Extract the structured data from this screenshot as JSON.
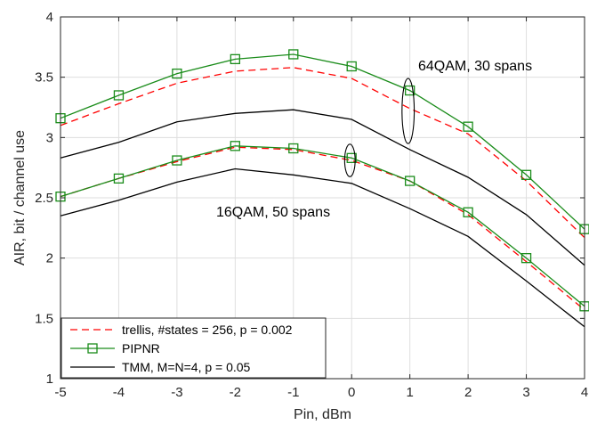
{
  "chart_data": {
    "type": "line",
    "xlabel": "Pin, dBm",
    "ylabel": "AIR, bit / channel use",
    "xlim": [
      -5,
      4
    ],
    "ylim": [
      1,
      4
    ],
    "xticks": [
      -5,
      -4,
      -3,
      -2,
      -1,
      0,
      1,
      2,
      3,
      4
    ],
    "xtick_labels": [
      "-5",
      "-4",
      "-3",
      "-2",
      "-1",
      "0",
      "1",
      "2",
      "3",
      "4"
    ],
    "yticks": [
      1,
      1.5,
      2,
      2.5,
      3,
      3.5,
      4
    ],
    "ytick_labels": [
      "1",
      "1.5",
      "2",
      "2.5",
      "3",
      "3.5",
      "4"
    ],
    "grid": true,
    "legend_position": "bottom-left",
    "x": [
      -5,
      -4,
      -3,
      -2,
      -1,
      0,
      1,
      2,
      3,
      4
    ],
    "series": [
      {
        "name": "trellis, #states = 256, p = 0.002",
        "group": "64QAM",
        "color": "#ff0000",
        "style": "dashed",
        "marker": "none",
        "values": [
          3.1,
          3.28,
          3.45,
          3.55,
          3.58,
          3.49,
          3.24,
          3.03,
          2.64,
          2.17
        ]
      },
      {
        "name": "PIPNR",
        "group": "64QAM",
        "color": "#1a8c1a",
        "style": "solid",
        "marker": "square",
        "values": [
          3.16,
          3.35,
          3.53,
          3.65,
          3.69,
          3.59,
          3.39,
          3.09,
          2.69,
          2.24
        ]
      },
      {
        "name": "TMM, M=N=4, p = 0.05",
        "group": "64QAM",
        "color": "#000000",
        "style": "solid",
        "marker": "none",
        "values": [
          2.83,
          2.96,
          3.13,
          3.2,
          3.23,
          3.15,
          2.9,
          2.67,
          2.36,
          1.94
        ]
      },
      {
        "name": "trellis, #states = 256, p = 0.002",
        "group": "16QAM",
        "color": "#ff0000",
        "style": "dashed",
        "marker": "none",
        "values": [
          2.51,
          2.66,
          2.8,
          2.92,
          2.9,
          2.81,
          2.64,
          2.36,
          1.97,
          1.57
        ]
      },
      {
        "name": "PIPNR",
        "group": "16QAM",
        "color": "#1a8c1a",
        "style": "solid",
        "marker": "square",
        "values": [
          2.51,
          2.66,
          2.81,
          2.93,
          2.91,
          2.83,
          2.64,
          2.38,
          2.0,
          1.6
        ]
      },
      {
        "name": "TMM, M=N=4, p = 0.05",
        "group": "16QAM",
        "color": "#000000",
        "style": "solid",
        "marker": "none",
        "values": [
          2.35,
          2.48,
          2.63,
          2.74,
          2.69,
          2.62,
          2.41,
          2.18,
          1.81,
          1.43
        ]
      }
    ],
    "annotations": [
      {
        "text": "64QAM, 30 spans",
        "ellipse_center": [
          0.97,
          3.22
        ],
        "ellipse_span": [
          0.21,
          0.54
        ]
      },
      {
        "text": "16QAM, 50 spans",
        "ellipse_center": [
          -0.03,
          2.81
        ],
        "ellipse_span": [
          0.18,
          0.27
        ]
      }
    ],
    "legend": [
      {
        "label": "trellis, #states = 256, p = 0.002",
        "color": "#ff0000",
        "style": "dashed",
        "marker": "none"
      },
      {
        "label": "PIPNR",
        "color": "#1a8c1a",
        "style": "solid",
        "marker": "square"
      },
      {
        "label": "TMM, M=N=4, p = 0.05",
        "color": "#000000",
        "style": "solid",
        "marker": "none"
      }
    ],
    "colors": {
      "trellis": "#ff0000",
      "pipnr": "#1a8c1a",
      "tmm": "#000000",
      "grid": "#dedede",
      "axis": "#262626"
    }
  }
}
